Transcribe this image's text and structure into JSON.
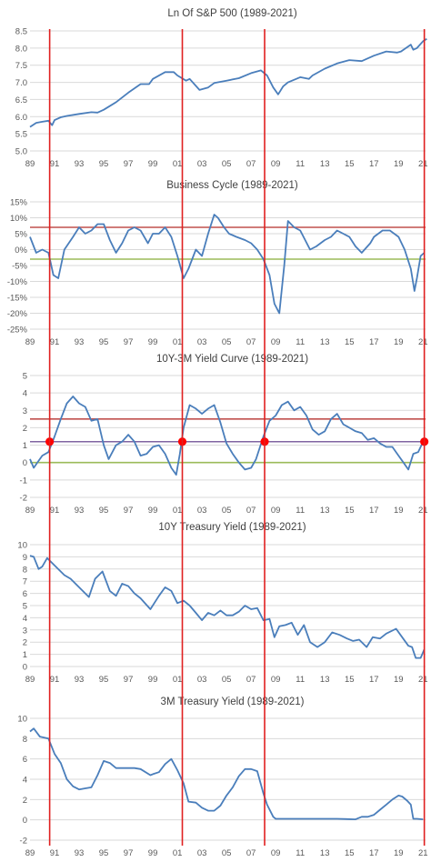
{
  "chart_data": [
    {
      "type": "line",
      "title": "Ln Of S&P 500 (1989-2021)",
      "ylim": [
        5.0,
        8.5
      ],
      "yticks": [
        5.0,
        5.5,
        6.0,
        6.5,
        7.0,
        7.5,
        8.0,
        8.5
      ],
      "ytick_labels": [
        "5.0",
        "5.5",
        "6.0",
        "6.5",
        "7.0",
        "7.5",
        "8.0",
        "8.5"
      ],
      "series": [
        {
          "color": "#4a7ebb",
          "x": [
            1989.0,
            1989.5,
            1990.0,
            1990.5,
            1990.8,
            1991.0,
            1991.5,
            1992.0,
            1993.0,
            1994.0,
            1994.5,
            1995.0,
            1996.0,
            1997.0,
            1998.0,
            1998.7,
            1999.0,
            2000.0,
            2000.7,
            2001.0,
            2001.7,
            2002.0,
            2002.8,
            2003.5,
            2004.0,
            2005.0,
            2006.0,
            2007.0,
            2007.8,
            2008.3,
            2008.8,
            2009.2,
            2009.6,
            2010.0,
            2011.0,
            2011.7,
            2012.0,
            2013.0,
            2014.0,
            2015.0,
            2016.0,
            2017.0,
            2018.0,
            2018.9,
            2019.2,
            2020.0,
            2020.2,
            2020.5,
            2021.0,
            2021.3
          ],
          "values": [
            5.7,
            5.82,
            5.85,
            5.88,
            5.75,
            5.9,
            5.98,
            6.02,
            6.08,
            6.13,
            6.12,
            6.2,
            6.42,
            6.7,
            6.95,
            6.95,
            7.1,
            7.3,
            7.3,
            7.2,
            7.05,
            7.1,
            6.78,
            6.85,
            6.98,
            7.05,
            7.12,
            7.27,
            7.35,
            7.2,
            6.85,
            6.65,
            6.88,
            7.0,
            7.15,
            7.1,
            7.2,
            7.4,
            7.55,
            7.65,
            7.62,
            7.78,
            7.9,
            7.87,
            7.9,
            8.1,
            7.95,
            8.0,
            8.2,
            8.27
          ]
        }
      ],
      "x_range": [
        1989,
        2021.2
      ],
      "x_ticks": [
        "89",
        "91",
        "93",
        "95",
        "97",
        "99",
        "01",
        "03",
        "05",
        "07",
        "09",
        "11",
        "13",
        "15",
        "17",
        "19",
        "21"
      ],
      "vlines": [
        1990.6,
        2001.4,
        2008.1,
        2021.1
      ]
    },
    {
      "type": "line",
      "title": "Business Cycle (1989-2021)",
      "ylim": [
        -25,
        15
      ],
      "yticks": [
        -25,
        -20,
        -15,
        -10,
        -5,
        0,
        5,
        10,
        15
      ],
      "ytick_labels": [
        "-25%",
        "-20%",
        "-15%",
        "-10%",
        "-5%",
        "0%",
        "5%",
        "10%",
        "15%"
      ],
      "series": [
        {
          "color": "#4a7ebb",
          "x": [
            1989.0,
            1989.5,
            1990.0,
            1990.5,
            1990.9,
            1991.3,
            1991.8,
            1992.5,
            1993.0,
            1993.5,
            1994.0,
            1994.5,
            1995.0,
            1995.5,
            1996.0,
            1996.5,
            1997.0,
            1997.5,
            1998.0,
            1998.6,
            1999.0,
            1999.5,
            2000.0,
            2000.5,
            2001.0,
            2001.5,
            2001.9,
            2002.5,
            2003.0,
            2003.5,
            2004.0,
            2004.3,
            2004.8,
            2005.2,
            2005.8,
            2006.5,
            2007.0,
            2007.5,
            2008.0,
            2008.5,
            2008.9,
            2009.3,
            2009.7,
            2010.0,
            2010.5,
            2011.0,
            2011.8,
            2012.3,
            2013.0,
            2013.5,
            2014.0,
            2014.5,
            2015.0,
            2015.5,
            2016.0,
            2016.7,
            2017.0,
            2017.7,
            2018.3,
            2019.0,
            2019.5,
            2020.0,
            2020.3,
            2020.5,
            2020.8,
            2021.1
          ],
          "values": [
            4,
            -1,
            0,
            -1,
            -8,
            -9,
            0,
            4,
            7,
            5,
            6,
            8,
            8,
            3,
            -1,
            2,
            6,
            7,
            6,
            2,
            5,
            5,
            7,
            4,
            -2,
            -9,
            -6,
            0,
            -2,
            5,
            11,
            10,
            7,
            5,
            4,
            3,
            2,
            0,
            -3,
            -8,
            -17,
            -20,
            -5,
            9,
            7,
            6,
            0,
            1,
            3,
            4,
            6,
            5,
            4,
            1,
            -1,
            2,
            4,
            6,
            6,
            4,
            0,
            -6,
            -13,
            -9,
            -2,
            -1
          ]
        }
      ],
      "x_range": [
        1989,
        2021.2
      ],
      "x_ticks": [
        "89",
        "91",
        "93",
        "95",
        "97",
        "99",
        "01",
        "03",
        "05",
        "07",
        "09",
        "11",
        "13",
        "15",
        "17",
        "19",
        "21"
      ],
      "vlines": [
        1990.6,
        2001.4,
        2008.1,
        2021.1
      ],
      "hlines": [
        {
          "y": 7,
          "color": "#c0504d"
        },
        {
          "y": -3,
          "color": "#9bbb59"
        }
      ]
    },
    {
      "type": "line",
      "title": "10Y-3M Yield Curve (1989-2021)",
      "ylim": [
        -2,
        5
      ],
      "yticks": [
        -2,
        -1,
        0,
        1,
        2,
        3,
        4,
        5
      ],
      "ytick_labels": [
        "-2",
        "-1",
        "0",
        "1",
        "2",
        "3",
        "4",
        "5"
      ],
      "series": [
        {
          "color": "#4a7ebb",
          "x": [
            1989.0,
            1989.3,
            1989.6,
            1990.0,
            1990.5,
            1991.0,
            1991.5,
            1992.0,
            1992.5,
            1993.0,
            1993.5,
            1994.0,
            1994.5,
            1995.0,
            1995.4,
            1996.0,
            1996.5,
            1997.0,
            1997.5,
            1998.0,
            1998.5,
            1999.0,
            1999.5,
            2000.0,
            2000.5,
            2000.9,
            2001.2,
            2001.5,
            2002.0,
            2002.5,
            2003.0,
            2003.5,
            2004.0,
            2004.5,
            2005.0,
            2005.5,
            2006.0,
            2006.5,
            2007.0,
            2007.4,
            2008.0,
            2008.5,
            2009.0,
            2009.5,
            2010.0,
            2010.5,
            2011.0,
            2011.5,
            2012.0,
            2012.5,
            2013.0,
            2013.5,
            2014.0,
            2014.5,
            2015.0,
            2015.5,
            2016.0,
            2016.5,
            2017.0,
            2017.5,
            2018.0,
            2018.5,
            2019.0,
            2019.4,
            2019.8,
            2020.2,
            2020.6,
            2021.0
          ],
          "values": [
            0.2,
            -0.3,
            0.0,
            0.4,
            0.6,
            1.5,
            2.5,
            3.4,
            3.8,
            3.4,
            3.2,
            2.4,
            2.5,
            1.0,
            0.2,
            1.0,
            1.2,
            1.6,
            1.2,
            0.4,
            0.5,
            0.9,
            1.0,
            0.5,
            -0.3,
            -0.7,
            0.5,
            2.0,
            3.3,
            3.1,
            2.8,
            3.1,
            3.3,
            2.3,
            1.1,
            0.5,
            0.0,
            -0.4,
            -0.3,
            0.2,
            1.5,
            2.4,
            2.7,
            3.3,
            3.5,
            3.0,
            3.2,
            2.7,
            1.9,
            1.6,
            1.8,
            2.5,
            2.8,
            2.2,
            2.0,
            1.8,
            1.7,
            1.3,
            1.4,
            1.1,
            0.9,
            0.9,
            0.4,
            0.0,
            -0.4,
            0.5,
            0.6,
            1.2
          ]
        }
      ],
      "x_range": [
        1989,
        2021.2
      ],
      "x_ticks": [
        "89",
        "91",
        "93",
        "95",
        "97",
        "99",
        "01",
        "03",
        "05",
        "07",
        "09",
        "11",
        "13",
        "15",
        "17",
        "19",
        "21"
      ],
      "vlines": [
        1990.6,
        2001.4,
        2008.1,
        2021.1
      ],
      "hlines": [
        {
          "y": 2.5,
          "color": "#c0504d"
        },
        {
          "y": 1.2,
          "color": "#8064a2"
        },
        {
          "y": 0,
          "color": "#9bbb59"
        }
      ],
      "markers": [
        {
          "x": 1990.6,
          "y": 1.2
        },
        {
          "x": 2001.4,
          "y": 1.2
        },
        {
          "x": 2008.1,
          "y": 1.2
        },
        {
          "x": 2021.1,
          "y": 1.2
        }
      ]
    },
    {
      "type": "line",
      "title": "10Y Treasury Yield (1989-2021)",
      "ylim": [
        0,
        10
      ],
      "yticks": [
        0,
        1,
        2,
        3,
        4,
        5,
        6,
        7,
        8,
        9,
        10
      ],
      "ytick_labels": [
        "0",
        "1",
        "2",
        "3",
        "4",
        "5",
        "6",
        "7",
        "8",
        "9",
        "10"
      ],
      "series": [
        {
          "color": "#4a7ebb",
          "x": [
            1989.0,
            1989.3,
            1989.7,
            1990.0,
            1990.4,
            1990.8,
            1991.2,
            1991.8,
            1992.3,
            1993.0,
            1993.8,
            1994.3,
            1994.9,
            1995.5,
            1996.0,
            1996.5,
            1997.0,
            1997.5,
            1998.0,
            1998.8,
            1999.5,
            2000.0,
            2000.5,
            2001.0,
            2001.5,
            2002.0,
            2002.5,
            2003.0,
            2003.5,
            2004.0,
            2004.5,
            2005.0,
            2005.5,
            2006.0,
            2006.5,
            2007.0,
            2007.5,
            2008.0,
            2008.5,
            2008.9,
            2009.3,
            2009.8,
            2010.3,
            2010.8,
            2011.3,
            2011.8,
            2012.4,
            2013.0,
            2013.6,
            2014.2,
            2014.8,
            2015.3,
            2015.8,
            2016.4,
            2016.9,
            2017.5,
            2018.0,
            2018.8,
            2019.3,
            2019.8,
            2020.1,
            2020.4,
            2020.8,
            2021.1
          ],
          "values": [
            9.1,
            9.0,
            8.0,
            8.2,
            8.9,
            8.5,
            8.1,
            7.5,
            7.2,
            6.5,
            5.7,
            7.2,
            7.8,
            6.2,
            5.8,
            6.8,
            6.6,
            6.0,
            5.6,
            4.7,
            5.8,
            6.5,
            6.2,
            5.2,
            5.4,
            5.0,
            4.4,
            3.8,
            4.4,
            4.2,
            4.6,
            4.2,
            4.2,
            4.5,
            5.0,
            4.7,
            4.8,
            3.8,
            3.9,
            2.4,
            3.3,
            3.4,
            3.6,
            2.6,
            3.4,
            2.0,
            1.6,
            2.0,
            2.8,
            2.6,
            2.3,
            2.1,
            2.2,
            1.6,
            2.4,
            2.3,
            2.7,
            3.1,
            2.4,
            1.7,
            1.6,
            0.7,
            0.7,
            1.4
          ]
        }
      ],
      "x_range": [
        1989,
        2021.2
      ],
      "x_ticks": [
        "89",
        "91",
        "93",
        "95",
        "97",
        "99",
        "01",
        "03",
        "05",
        "07",
        "09",
        "11",
        "13",
        "15",
        "17",
        "19",
        "21"
      ],
      "vlines": [
        1990.6,
        2001.4,
        2008.1,
        2021.1
      ]
    },
    {
      "type": "line",
      "title": "3M Treasury Yield (1989-2021)",
      "ylim": [
        -2,
        10
      ],
      "yticks": [
        -2,
        0,
        2,
        4,
        6,
        8,
        10
      ],
      "ytick_labels": [
        "-2",
        "0",
        "2",
        "4",
        "6",
        "8",
        "10"
      ],
      "series": [
        {
          "color": "#4a7ebb",
          "x": [
            1989.0,
            1989.3,
            1989.8,
            1990.5,
            1991.0,
            1991.5,
            1992.0,
            1992.5,
            1993.0,
            1993.5,
            1994.0,
            1994.5,
            1995.0,
            1995.5,
            1996.0,
            1996.5,
            1997.0,
            1997.5,
            1998.0,
            1998.8,
            1999.0,
            1999.5,
            2000.0,
            2000.5,
            2001.0,
            2001.5,
            2001.9,
            2002.5,
            2003.0,
            2003.5,
            2004.0,
            2004.5,
            2005.0,
            2005.5,
            2006.0,
            2006.5,
            2007.0,
            2007.5,
            2008.0,
            2008.3,
            2008.8,
            2009.0,
            2010.0,
            2012.0,
            2014.0,
            2015.5,
            2016.0,
            2016.5,
            2017.0,
            2017.5,
            2018.0,
            2018.5,
            2019.0,
            2019.3,
            2019.7,
            2020.0,
            2020.2,
            2020.5,
            2021.0
          ],
          "values": [
            8.7,
            9.0,
            8.2,
            8.0,
            6.5,
            5.6,
            4.0,
            3.3,
            3.0,
            3.1,
            3.2,
            4.4,
            5.8,
            5.6,
            5.1,
            5.1,
            5.1,
            5.1,
            5.0,
            4.4,
            4.5,
            4.7,
            5.5,
            6.0,
            4.9,
            3.6,
            1.8,
            1.7,
            1.2,
            0.9,
            0.9,
            1.4,
            2.4,
            3.2,
            4.3,
            5.0,
            5.0,
            4.8,
            2.6,
            1.5,
            0.3,
            0.1,
            0.1,
            0.1,
            0.1,
            0.05,
            0.3,
            0.3,
            0.5,
            1.0,
            1.5,
            2.0,
            2.4,
            2.3,
            1.9,
            1.5,
            0.1,
            0.1,
            0.05
          ]
        }
      ],
      "x_range": [
        1989,
        2021.2
      ],
      "x_ticks": [
        "89",
        "91",
        "93",
        "95",
        "97",
        "99",
        "01",
        "03",
        "05",
        "07",
        "09",
        "11",
        "13",
        "15",
        "17",
        "19",
        "21"
      ],
      "vlines": [
        1990.6,
        2001.4,
        2008.1,
        2021.1
      ]
    }
  ],
  "colors": {
    "series": "#4a7ebb",
    "vline": "#e02020",
    "grid": "#d9d9d9",
    "marker": "#ff0000"
  }
}
